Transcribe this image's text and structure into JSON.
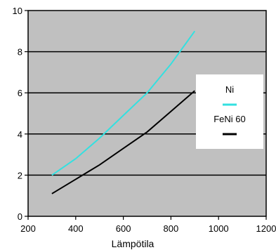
{
  "chart_data": {
    "type": "line",
    "title": "",
    "xlabel": "Lämpötila",
    "ylabel": "",
    "xlim": [
      200,
      1200
    ],
    "ylim": [
      0,
      10
    ],
    "xticks": [
      200,
      400,
      600,
      800,
      1000,
      1200
    ],
    "yticks": [
      0,
      2,
      4,
      6,
      8,
      10
    ],
    "grid": "horizontal",
    "background": "#c0c0c0",
    "legend_position": "right",
    "series": [
      {
        "name": "Ni",
        "color": "#33e0e0",
        "x": [
          300,
          400,
          500,
          600,
          700,
          800,
          900
        ],
        "y": [
          2.0,
          2.8,
          3.8,
          4.9,
          6.0,
          7.4,
          9.0
        ]
      },
      {
        "name": "FeNi 60",
        "color": "#000000",
        "x": [
          300,
          400,
          500,
          600,
          700,
          800,
          900
        ],
        "y": [
          1.1,
          1.8,
          2.5,
          3.3,
          4.1,
          5.1,
          6.1
        ]
      }
    ]
  }
}
